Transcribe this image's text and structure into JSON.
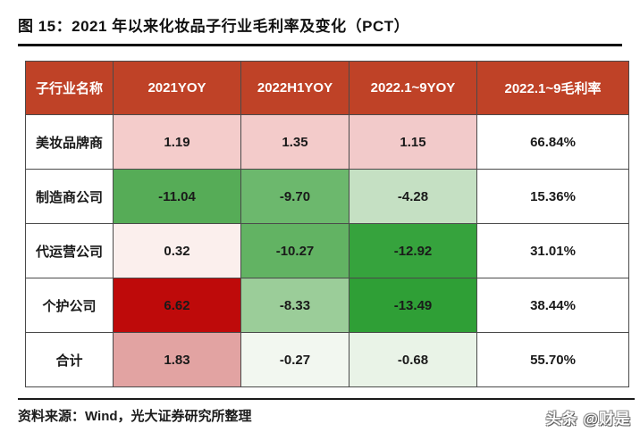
{
  "title": "图 15：2021 年以来化妆品子行业毛利率及变化（PCT）",
  "table": {
    "headers": [
      "子行业名称",
      "2021YOY",
      "2022H1YOY",
      "2022.1~9YOY",
      "2022.1~9毛利率"
    ],
    "rows": [
      {
        "name": "美妆品牌商",
        "values": [
          "1.19",
          "1.35",
          "1.15",
          "66.84%"
        ],
        "colors": [
          "#f4cccb",
          "#f3cbca",
          "#f2caca",
          "#ffffff"
        ]
      },
      {
        "name": "制造商公司",
        "values": [
          "-11.04",
          "-9.70",
          "-4.28",
          "15.36%"
        ],
        "colors": [
          "#56ac57",
          "#6cb86d",
          "#c5e0c3",
          "#ffffff"
        ]
      },
      {
        "name": "代运营公司",
        "values": [
          "0.32",
          "-10.27",
          "-12.92",
          "31.01%"
        ],
        "colors": [
          "#fbefed",
          "#62b363",
          "#36a33d",
          "#ffffff"
        ]
      },
      {
        "name": "个护公司",
        "values": [
          "6.62",
          "-8.33",
          "-13.49",
          "38.44%"
        ],
        "colors": [
          "#be0a0a",
          "#9bcd99",
          "#2f9f36",
          "#ffffff"
        ]
      },
      {
        "name": "合计",
        "values": [
          "1.83",
          "-0.27",
          "-0.68",
          "55.70%"
        ],
        "colors": [
          "#e2a3a2",
          "#f2f7f0",
          "#e9f3e7",
          "#ffffff"
        ]
      }
    ]
  },
  "source_note": "资料来源：Wind，光大证券研究所整理",
  "watermark": "头条 @财是",
  "colors": {
    "header_bg": "#bf4227",
    "header_text": "#ffffff",
    "border": "#4a4a4a",
    "title_text": "#111111",
    "positive_strong": "#be0a0a",
    "negative_strong": "#2f9f36"
  },
  "chart_data": {
    "type": "table",
    "title": "图 15：2021 年以来化妆品子行业毛利率及变化（PCT）",
    "columns": [
      "子行业名称",
      "2021YOY",
      "2022H1YOY",
      "2022.1~9YOY",
      "2022.1~9毛利率"
    ],
    "rows": [
      [
        "美妆品牌商",
        1.19,
        1.35,
        1.15,
        "66.84%"
      ],
      [
        "制造商公司",
        -11.04,
        -9.7,
        -4.28,
        "15.36%"
      ],
      [
        "代运营公司",
        0.32,
        -10.27,
        -12.92,
        "31.01%"
      ],
      [
        "个护公司",
        6.62,
        -8.33,
        -13.49,
        "38.44%"
      ],
      [
        "合计",
        1.83,
        -0.27,
        -0.68,
        "55.70%"
      ]
    ],
    "layout": "heatmap-colored table: red shades = increase, green shades = decrease"
  }
}
